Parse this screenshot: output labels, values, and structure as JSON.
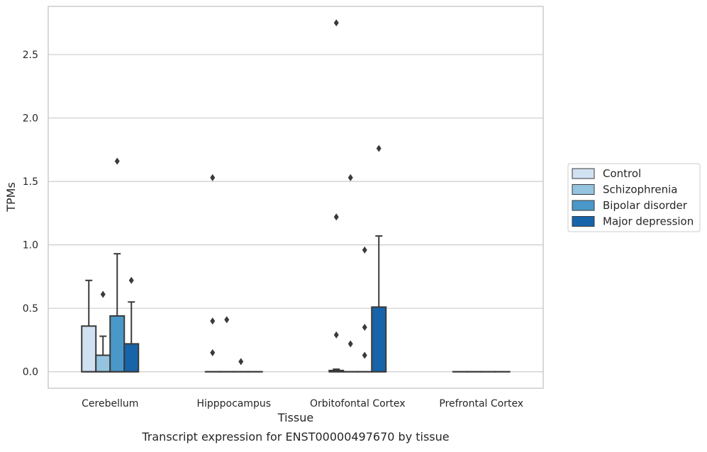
{
  "chart_data": {
    "type": "box",
    "xlabel": "Tissue",
    "ylabel": "TPMs",
    "caption": "Transcript expression for ENST00000497670 by tissue",
    "ylim": [
      -0.13,
      2.88
    ],
    "yticks": [
      0.0,
      0.5,
      1.0,
      1.5,
      2.0,
      2.5
    ],
    "ytick_labels": [
      "0.0",
      "0.5",
      "1.0",
      "1.5",
      "2.0",
      "2.5"
    ],
    "grid": "horizontal",
    "legend_position": "right",
    "categories": [
      "Cerebellum",
      "Hipppocampus",
      "Orbitofontal Cortex",
      "Prefrontal Cortex"
    ],
    "series": [
      {
        "name": "Control",
        "color": "#d0e1f2",
        "boxes": [
          {
            "q1": 0.0,
            "median": 0.0,
            "q3": 0.36,
            "whislo": 0.0,
            "whishi": 0.72,
            "fliers": []
          },
          {
            "q1": 0.0,
            "median": 0.0,
            "q3": 0.0,
            "whislo": 0.0,
            "whishi": 0.0,
            "fliers": [
              1.53,
              0.4,
              0.15
            ]
          },
          {
            "q1": 0.0,
            "median": 0.0,
            "q3": 0.01,
            "whislo": 0.0,
            "whishi": 0.02,
            "fliers": [
              2.75,
              1.22,
              0.29
            ]
          },
          {
            "q1": 0.0,
            "median": 0.0,
            "q3": 0.0,
            "whislo": 0.0,
            "whishi": 0.0,
            "fliers": []
          }
        ]
      },
      {
        "name": "Schizophrenia",
        "color": "#94c4df",
        "boxes": [
          {
            "q1": 0.0,
            "median": 0.0,
            "q3": 0.13,
            "whislo": 0.0,
            "whishi": 0.28,
            "fliers": [
              0.61
            ]
          },
          {
            "q1": 0.0,
            "median": 0.0,
            "q3": 0.0,
            "whislo": 0.0,
            "whishi": 0.0,
            "fliers": [
              0.41
            ]
          },
          {
            "q1": 0.0,
            "median": 0.0,
            "q3": 0.0,
            "whislo": 0.0,
            "whishi": 0.0,
            "fliers": [
              1.53,
              0.22
            ]
          },
          {
            "q1": 0.0,
            "median": 0.0,
            "q3": 0.0,
            "whislo": 0.0,
            "whishi": 0.0,
            "fliers": []
          }
        ]
      },
      {
        "name": "Bipolar disorder",
        "color": "#4a98c9",
        "boxes": [
          {
            "q1": 0.0,
            "median": 0.0,
            "q3": 0.44,
            "whislo": 0.0,
            "whishi": 0.93,
            "fliers": [
              1.66
            ]
          },
          {
            "q1": 0.0,
            "median": 0.0,
            "q3": 0.0,
            "whislo": 0.0,
            "whishi": 0.0,
            "fliers": [
              0.08
            ]
          },
          {
            "q1": 0.0,
            "median": 0.0,
            "q3": 0.0,
            "whislo": 0.0,
            "whishi": 0.0,
            "fliers": [
              0.96,
              0.35,
              0.13
            ]
          },
          {
            "q1": 0.0,
            "median": 0.0,
            "q3": 0.0,
            "whislo": 0.0,
            "whishi": 0.0,
            "fliers": []
          }
        ]
      },
      {
        "name": "Major depression",
        "color": "#1764ab",
        "boxes": [
          {
            "q1": 0.0,
            "median": 0.0,
            "q3": 0.22,
            "whislo": 0.0,
            "whishi": 0.55,
            "fliers": [
              0.72
            ]
          },
          {
            "q1": 0.0,
            "median": 0.0,
            "q3": 0.0,
            "whislo": 0.0,
            "whishi": 0.0,
            "fliers": []
          },
          {
            "q1": 0.0,
            "median": 0.0,
            "q3": 0.51,
            "whislo": 0.0,
            "whishi": 1.07,
            "fliers": [
              1.76
            ]
          },
          {
            "q1": 0.0,
            "median": 0.0,
            "q3": 0.0,
            "whislo": 0.0,
            "whishi": 0.0,
            "fliers": []
          }
        ]
      }
    ]
  }
}
